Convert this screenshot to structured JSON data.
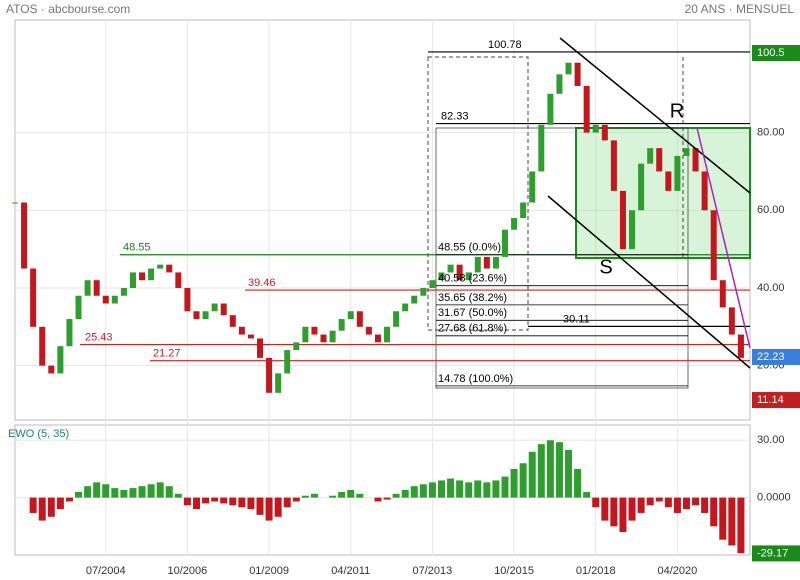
{
  "header": {
    "symbol": "ATOS · abcbourse.com",
    "period": "20 ANS · MENSUEL"
  },
  "chart_data": [
    {
      "type": "candle",
      "title": "ATOS",
      "x": [
        "01/2002",
        "04/2002",
        "07/2002",
        "10/2002",
        "01/2003",
        "04/2003",
        "07/2003",
        "10/2003",
        "01/2004",
        "04/2004",
        "07/2004",
        "10/2004",
        "01/2005",
        "04/2005",
        "07/2005",
        "10/2005",
        "01/2006",
        "04/2006",
        "07/2006",
        "10/2006",
        "01/2007",
        "04/2007",
        "07/2007",
        "10/2007",
        "01/2008",
        "04/2008",
        "07/2008",
        "10/2008",
        "01/2009",
        "04/2009",
        "07/2009",
        "10/2009",
        "01/2010",
        "04/2010",
        "07/2010",
        "10/2010",
        "01/2011",
        "04/2011",
        "07/2011",
        "10/2011",
        "01/2012",
        "04/2012",
        "07/2012",
        "10/2012",
        "01/2013",
        "04/2013",
        "07/2013",
        "10/2013",
        "01/2014",
        "04/2014",
        "07/2014",
        "10/2014",
        "01/2015",
        "04/2015",
        "07/2015",
        "10/2015",
        "01/2016",
        "04/2016",
        "07/2016",
        "10/2016",
        "01/2017",
        "04/2017",
        "07/2017",
        "10/2017",
        "01/2018",
        "04/2018",
        "07/2018",
        "10/2018",
        "01/2019",
        "04/2019",
        "07/2019",
        "10/2019",
        "01/2020",
        "04/2020",
        "07/2020",
        "10/2020",
        "01/2021",
        "04/2021",
        "07/2021",
        "10/2021",
        "01/2022"
      ],
      "series": [
        {
          "name": "ATOS",
          "up_color": "#2e9e2e",
          "down_color": "#c4161c",
          "values": [
            62,
            45,
            30,
            20,
            18,
            25,
            32,
            38,
            42,
            38,
            36,
            38,
            40,
            44,
            42,
            45,
            46,
            44,
            40,
            34,
            32,
            34,
            36,
            33,
            30,
            28,
            27,
            22,
            13,
            18,
            24,
            26,
            30,
            28,
            26,
            29,
            32,
            34,
            30,
            28,
            26,
            30,
            34,
            36,
            38,
            40,
            42,
            44,
            46,
            42,
            44,
            48,
            45,
            48,
            55,
            58,
            62,
            70,
            82,
            90,
            95,
            98,
            92,
            80,
            82,
            78,
            65,
            50,
            60,
            72,
            76,
            70,
            65,
            74,
            76,
            70,
            60,
            42,
            35,
            28,
            22
          ]
        }
      ],
      "xlim": [
        "01/2002",
        "04/2022"
      ],
      "xticks": [
        "07/2004",
        "10/2006",
        "01/2009",
        "04/2011",
        "07/2013",
        "10/2015",
        "01/2018",
        "04/2020"
      ],
      "ylim": [
        6,
        109
      ],
      "yticks": [
        {
          "value": 20,
          "label": "20.00"
        },
        {
          "value": 40,
          "label": "40.00"
        },
        {
          "value": 60,
          "label": "60.00"
        },
        {
          "value": 80,
          "label": "80.00"
        }
      ],
      "grid": true,
      "price_tags": [
        {
          "value": 100.5,
          "label": "100.5",
          "color": "#1a8a1a"
        },
        {
          "value": 22.23,
          "label": "22.23",
          "color": "#3b7ddd"
        },
        {
          "value": 11.14,
          "label": "11.14",
          "color": "#c0201f"
        }
      ],
      "levels": [
        {
          "value": 100.78,
          "label": "100.78",
          "color": "#000000"
        },
        {
          "value": 82.33,
          "label": "82.33",
          "color": "#000000"
        },
        {
          "value": 48.55,
          "label": "48.55",
          "color": "#1a7f1a"
        },
        {
          "value": 39.46,
          "label": "39.46",
          "color": "#d02020"
        },
        {
          "value": 25.43,
          "label": "25.43",
          "color": "#d02020"
        },
        {
          "value": 21.27,
          "label": "21.27",
          "color": "#d02020"
        },
        {
          "value": 30.11,
          "label": "30.11",
          "color": "#000000"
        }
      ],
      "fibonacci": [
        {
          "value": 48.55,
          "label": "48.55  (0.0%)"
        },
        {
          "value": 40.58,
          "label": "40.58  (23.6%)"
        },
        {
          "value": 35.65,
          "label": "35.65  (38.2%)"
        },
        {
          "value": 31.67,
          "label": "31.67  (50.0%)"
        },
        {
          "value": 27.68,
          "label": "27.68  (61.8%)"
        },
        {
          "value": 14.78,
          "label": "14.78  (100.0%)"
        }
      ],
      "markers": [
        "R",
        "S"
      ]
    },
    {
      "type": "bar",
      "title": "EWO (5, 35)",
      "x": [
        "01/2002",
        "04/2002",
        "07/2002",
        "10/2002",
        "01/2003",
        "04/2003",
        "07/2003",
        "10/2003",
        "01/2004",
        "04/2004",
        "07/2004",
        "10/2004",
        "01/2005",
        "04/2005",
        "07/2005",
        "10/2005",
        "01/2006",
        "04/2006",
        "07/2006",
        "10/2006",
        "01/2007",
        "04/2007",
        "07/2007",
        "10/2007",
        "01/2008",
        "04/2008",
        "07/2008",
        "10/2008",
        "01/2009",
        "04/2009",
        "07/2009",
        "10/2009",
        "01/2010",
        "04/2010",
        "07/2010",
        "10/2010",
        "01/2011",
        "04/2011",
        "07/2011",
        "10/2011",
        "01/2012",
        "04/2012",
        "07/2012",
        "10/2012",
        "01/2013",
        "04/2013",
        "07/2013",
        "10/2013",
        "01/2014",
        "04/2014",
        "07/2014",
        "10/2014",
        "01/2015",
        "04/2015",
        "07/2015",
        "10/2015",
        "01/2016",
        "04/2016",
        "07/2016",
        "10/2016",
        "01/2017",
        "04/2017",
        "07/2017",
        "10/2017",
        "01/2018",
        "04/2018",
        "07/2018",
        "10/2018",
        "01/2019",
        "04/2019",
        "07/2019",
        "10/2019",
        "01/2020",
        "04/2020",
        "07/2020",
        "10/2020",
        "01/2021",
        "04/2021",
        "07/2021",
        "10/2021",
        "01/2022"
      ],
      "series": [
        {
          "name": "EWO",
          "up_color": "#2e9e2e",
          "down_color": "#c4161c",
          "values": [
            null,
            null,
            -8,
            -12,
            -10,
            -6,
            -2,
            3,
            6,
            8,
            7,
            5,
            4,
            5,
            6,
            7,
            8,
            6,
            2,
            -4,
            -6,
            -3,
            -2,
            -3,
            -4,
            -5,
            -6,
            -9,
            -12,
            -10,
            -5,
            -2,
            1,
            2,
            0,
            1,
            3,
            4,
            2,
            0,
            -2,
            -1,
            2,
            4,
            6,
            7,
            8,
            9,
            10,
            9,
            8,
            9,
            8,
            9,
            11,
            15,
            18,
            24,
            28,
            30,
            29,
            25,
            15,
            3,
            -5,
            -12,
            -15,
            -18,
            -12,
            -8,
            -4,
            -2,
            -5,
            -8,
            -6,
            -4,
            -8,
            -15,
            -22,
            -25,
            -29
          ]
        }
      ],
      "ylim": [
        -30,
        38
      ],
      "yticks": [
        {
          "value": 0,
          "label": "0.0000"
        },
        {
          "value": 30,
          "label": "30.00"
        }
      ],
      "price_tags": [
        {
          "value": -29.17,
          "label": "-29.17",
          "color": "#1a8a1a"
        }
      ]
    }
  ]
}
